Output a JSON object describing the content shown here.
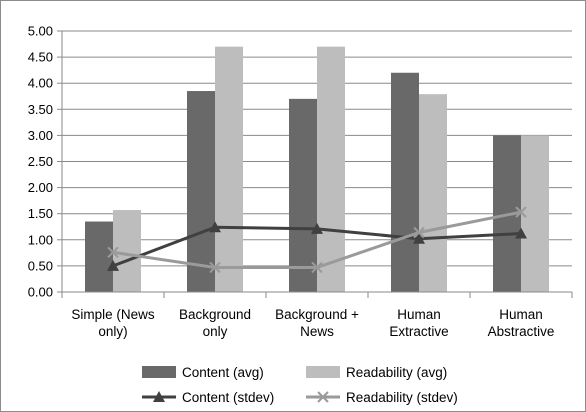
{
  "chart_data": {
    "type": "bar",
    "categories": [
      [
        "Simple (News",
        "only)"
      ],
      [
        "Background",
        "only"
      ],
      [
        "Background +",
        "News"
      ],
      [
        "Human",
        "Extractive"
      ],
      [
        "Human",
        "Abstractive"
      ]
    ],
    "ylim": [
      0,
      5
    ],
    "y_ticks": [
      "0.00",
      "0.50",
      "1.00",
      "1.50",
      "2.00",
      "2.50",
      "3.00",
      "3.50",
      "4.00",
      "4.50",
      "5.00"
    ],
    "y_tick_values": [
      0,
      0.5,
      1,
      1.5,
      2,
      2.5,
      3,
      3.5,
      4,
      4.5,
      5
    ],
    "grid": true,
    "legend_position": "bottom",
    "bar_series": [
      {
        "name": "Content (avg)",
        "values": [
          1.35,
          3.85,
          3.7,
          4.2,
          3.0
        ],
        "color": "#696969"
      },
      {
        "name": "Readability (avg)",
        "values": [
          1.57,
          4.7,
          4.7,
          3.79,
          3.0
        ],
        "color": "#bdbdbd"
      }
    ],
    "line_series": [
      {
        "name": "Content (stdev)",
        "values": [
          0.5,
          1.24,
          1.21,
          1.02,
          1.12
        ],
        "color": "#404040",
        "marker": "triangle"
      },
      {
        "name": "Readability (stdev)",
        "values": [
          0.76,
          0.47,
          0.47,
          1.14,
          1.53
        ],
        "color": "#9a9a9a",
        "marker": "x"
      }
    ]
  }
}
